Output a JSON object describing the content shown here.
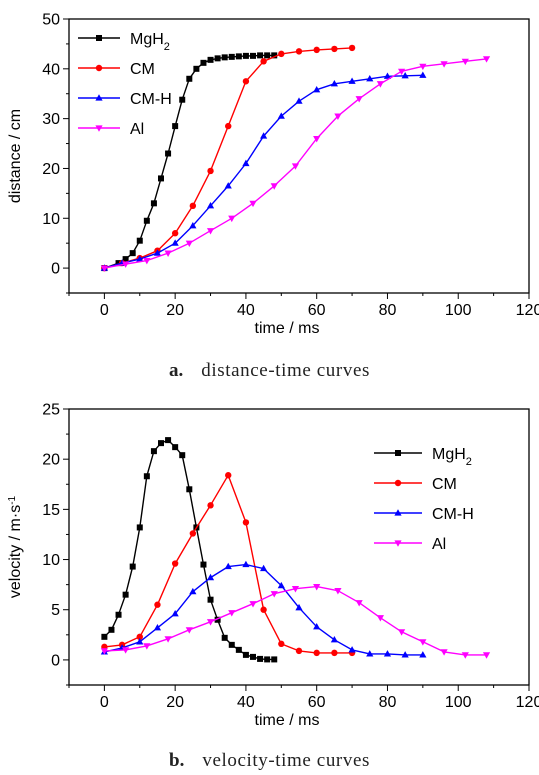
{
  "colors": {
    "MgH2": "#000000",
    "CM": "#ff0000",
    "CM-H": "#0000ff",
    "Al": "#ff00ff"
  },
  "chart_data": [
    {
      "type": "line",
      "panel": "a",
      "caption_letter": "a.",
      "caption_text": "distance-time curves",
      "xlabel": "time / ms",
      "ylabel": "distance / cm",
      "xlim": [
        -10,
        120
      ],
      "ylim": [
        -5,
        50
      ],
      "xticks": [
        "0",
        "20",
        "40",
        "60",
        "80",
        "100",
        "120"
      ],
      "yticks": [
        "0",
        "10",
        "20",
        "30",
        "40",
        "50"
      ],
      "legend": "top-left",
      "series": [
        {
          "name": "MgH2",
          "label_main": "MgH",
          "label_sub": "2",
          "color": "#000000",
          "marker": "square",
          "x": [
            0,
            4,
            6,
            8,
            10,
            12,
            14,
            16,
            18,
            20,
            22,
            24,
            26,
            28,
            30,
            32,
            34,
            36,
            38,
            40,
            42,
            44,
            46,
            48
          ],
          "y": [
            0,
            1,
            1.8,
            3,
            5.5,
            9.5,
            13,
            18,
            23,
            28.5,
            33.8,
            38,
            40,
            41.2,
            41.8,
            42.1,
            42.3,
            42.4,
            42.5,
            42.6,
            42.6,
            42.7,
            42.7,
            42.7
          ]
        },
        {
          "name": "CM",
          "label_main": "CM",
          "label_sub": "",
          "color": "#ff0000",
          "marker": "circle",
          "x": [
            0,
            5,
            10,
            15,
            20,
            25,
            30,
            35,
            40,
            45,
            50,
            55,
            60,
            65,
            70
          ],
          "y": [
            0,
            1,
            2,
            3.5,
            7,
            12.5,
            19.5,
            28.5,
            37.5,
            41.5,
            43,
            43.5,
            43.8,
            44,
            44.2
          ]
        },
        {
          "name": "CM-H",
          "label_main": "CM-H",
          "label_sub": "",
          "color": "#0000ff",
          "marker": "triangle-up",
          "x": [
            0,
            5,
            10,
            15,
            20,
            25,
            30,
            35,
            40,
            45,
            50,
            55,
            60,
            65,
            70,
            75,
            80,
            85,
            90
          ],
          "y": [
            0,
            1,
            1.8,
            3,
            5,
            8.5,
            12.5,
            16.5,
            21,
            26.5,
            30.5,
            33.5,
            35.8,
            37,
            37.5,
            38,
            38.5,
            38.6,
            38.7
          ]
        },
        {
          "name": "Al",
          "label_main": "Al",
          "label_sub": "",
          "color": "#ff00ff",
          "marker": "triangle-down",
          "x": [
            0,
            6,
            12,
            18,
            24,
            30,
            36,
            42,
            48,
            54,
            60,
            66,
            72,
            78,
            84,
            90,
            96,
            102,
            108
          ],
          "y": [
            0,
            0.8,
            1.5,
            3,
            5,
            7.5,
            10,
            13,
            16.5,
            20.5,
            26,
            30.5,
            34,
            37,
            39.5,
            40.5,
            41,
            41.5,
            42
          ]
        }
      ]
    },
    {
      "type": "line",
      "panel": "b",
      "caption_letter": "b.",
      "caption_text": "velocity-time curves",
      "xlabel": "time / ms",
      "ylabel": "velocity / m·s",
      "ylabel_sup": "-1",
      "xlim": [
        -10,
        120
      ],
      "ylim": [
        -2.5,
        25
      ],
      "xticks": [
        "0",
        "20",
        "40",
        "60",
        "80",
        "100",
        "120"
      ],
      "yticks": [
        "0",
        "5",
        "10",
        "15",
        "20",
        "25"
      ],
      "legend": "top-right",
      "series": [
        {
          "name": "MgH2",
          "label_main": "MgH",
          "label_sub": "2",
          "color": "#000000",
          "marker": "square",
          "x": [
            0,
            2,
            4,
            6,
            8,
            10,
            12,
            14,
            16,
            18,
            20,
            22,
            24,
            26,
            28,
            30,
            32,
            34,
            36,
            38,
            40,
            42,
            44,
            46,
            48
          ],
          "y": [
            2.3,
            3,
            4.5,
            6.5,
            9.3,
            13.2,
            18.3,
            20.8,
            21.6,
            21.9,
            21.2,
            20.4,
            17,
            13.2,
            9.5,
            6,
            4,
            2.2,
            1.5,
            1,
            0.5,
            0.3,
            0.1,
            0.05,
            0.05
          ]
        },
        {
          "name": "CM",
          "label_main": "CM",
          "label_sub": "",
          "color": "#ff0000",
          "marker": "circle",
          "x": [
            0,
            5,
            10,
            15,
            20,
            25,
            30,
            35,
            40,
            45,
            50,
            55,
            60,
            65,
            70
          ],
          "y": [
            1.3,
            1.5,
            2.3,
            5.5,
            9.6,
            12.6,
            15.4,
            18.4,
            13.7,
            5,
            1.6,
            0.9,
            0.7,
            0.7,
            0.7
          ]
        },
        {
          "name": "CM-H",
          "label_main": "CM-H",
          "label_sub": "",
          "color": "#0000ff",
          "marker": "triangle-up",
          "x": [
            0,
            5,
            10,
            15,
            20,
            25,
            30,
            35,
            40,
            45,
            50,
            55,
            60,
            65,
            70,
            75,
            80,
            85,
            90
          ],
          "y": [
            0.8,
            1.2,
            1.8,
            3.2,
            4.6,
            6.8,
            8.2,
            9.3,
            9.5,
            9.1,
            7.4,
            5.2,
            3.3,
            2,
            1,
            0.6,
            0.6,
            0.5,
            0.5
          ]
        },
        {
          "name": "Al",
          "label_main": "Al",
          "label_sub": "",
          "color": "#ff00ff",
          "marker": "triangle-down",
          "x": [
            0,
            6,
            12,
            18,
            24,
            30,
            36,
            42,
            48,
            54,
            60,
            66,
            72,
            78,
            84,
            90,
            96,
            102,
            108
          ],
          "y": [
            0.9,
            1,
            1.4,
            2.1,
            3,
            3.8,
            4.7,
            5.6,
            6.6,
            7.1,
            7.3,
            6.9,
            5.7,
            4.2,
            2.8,
            1.8,
            0.8,
            0.5,
            0.5
          ]
        }
      ]
    }
  ]
}
